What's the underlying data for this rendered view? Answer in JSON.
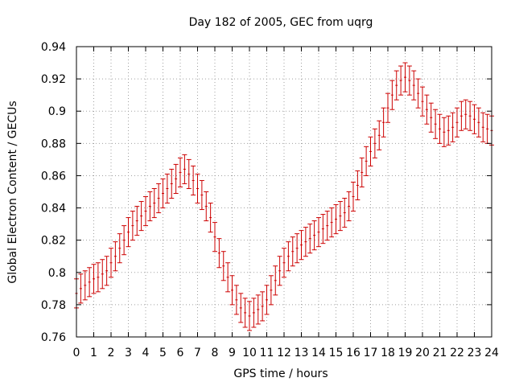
{
  "chart_data": {
    "type": "scatter",
    "title": "Day 182 of 2005, GEC from uqrg",
    "xlabel": "GPS time / hours",
    "ylabel": "Global Electron Content / GECUs",
    "xlim": [
      0,
      24
    ],
    "ylim": [
      0.76,
      0.94
    ],
    "xticks": [
      0,
      1,
      2,
      3,
      4,
      5,
      6,
      7,
      8,
      9,
      10,
      11,
      12,
      13,
      14,
      15,
      16,
      17,
      18,
      19,
      20,
      21,
      22,
      23,
      24
    ],
    "yticks": [
      0.76,
      0.78,
      0.8,
      0.82,
      0.84,
      0.86,
      0.88,
      0.9,
      0.92,
      0.94
    ],
    "ytick_labels": [
      "0.76",
      "0.78",
      "0.8",
      "0.82",
      "0.84",
      "0.86",
      "0.88",
      "0.9",
      "0.92",
      "0.94"
    ],
    "grid": true,
    "series_color": "#cc0000",
    "error": 0.009,
    "x": [
      0,
      0.25,
      0.5,
      0.75,
      1,
      1.25,
      1.5,
      1.75,
      2,
      2.25,
      2.5,
      2.75,
      3,
      3.25,
      3.5,
      3.75,
      4,
      4.25,
      4.5,
      4.75,
      5,
      5.25,
      5.5,
      5.75,
      6,
      6.25,
      6.5,
      6.75,
      7,
      7.25,
      7.5,
      7.75,
      8,
      8.25,
      8.5,
      8.75,
      9,
      9.25,
      9.5,
      9.75,
      10,
      10.25,
      10.5,
      10.75,
      11,
      11.25,
      11.5,
      11.75,
      12,
      12.25,
      12.5,
      12.75,
      13,
      13.25,
      13.5,
      13.75,
      14,
      14.25,
      14.5,
      14.75,
      15,
      15.25,
      15.5,
      15.75,
      16,
      16.25,
      16.5,
      16.75,
      17,
      17.25,
      17.5,
      17.75,
      18,
      18.25,
      18.5,
      18.75,
      19,
      19.25,
      19.5,
      19.75,
      20,
      20.25,
      20.5,
      20.75,
      21,
      21.25,
      21.5,
      21.75,
      22,
      22.25,
      22.5,
      22.75,
      23,
      23.25,
      23.5,
      23.75,
      24
    ],
    "y": [
      0.787,
      0.79,
      0.792,
      0.794,
      0.796,
      0.797,
      0.799,
      0.801,
      0.806,
      0.81,
      0.815,
      0.82,
      0.825,
      0.829,
      0.832,
      0.835,
      0.838,
      0.841,
      0.843,
      0.846,
      0.849,
      0.852,
      0.855,
      0.858,
      0.862,
      0.864,
      0.861,
      0.857,
      0.852,
      0.848,
      0.841,
      0.834,
      0.822,
      0.812,
      0.804,
      0.797,
      0.789,
      0.783,
      0.778,
      0.775,
      0.773,
      0.775,
      0.777,
      0.779,
      0.783,
      0.789,
      0.795,
      0.801,
      0.806,
      0.81,
      0.813,
      0.815,
      0.817,
      0.819,
      0.821,
      0.823,
      0.825,
      0.827,
      0.829,
      0.831,
      0.833,
      0.835,
      0.837,
      0.841,
      0.847,
      0.854,
      0.862,
      0.869,
      0.875,
      0.88,
      0.885,
      0.893,
      0.902,
      0.91,
      0.916,
      0.919,
      0.921,
      0.919,
      0.916,
      0.911,
      0.906,
      0.901,
      0.896,
      0.892,
      0.889,
      0.887,
      0.888,
      0.89,
      0.893,
      0.897,
      0.898,
      0.897,
      0.895,
      0.893,
      0.89,
      0.889,
      0.888
    ]
  }
}
